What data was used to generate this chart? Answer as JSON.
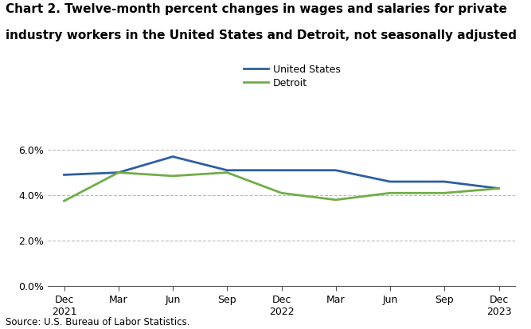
{
  "title_line1": "Chart 2. Twelve-month percent changes in wages and salaries for private",
  "title_line2": "industry workers in the United States and Detroit, not seasonally adjusted",
  "x_labels": [
    "Dec\n2021",
    "Mar",
    "Jun",
    "Sep",
    "Dec\n2022",
    "Mar",
    "Jun",
    "Sep",
    "Dec\n2023"
  ],
  "us_values": [
    4.9,
    5.0,
    5.7,
    5.1,
    5.1,
    5.1,
    4.6,
    4.6,
    4.3
  ],
  "detroit_values": [
    3.75,
    5.0,
    4.85,
    5.0,
    4.1,
    3.8,
    4.1,
    4.1,
    4.3
  ],
  "us_color": "#2e5fa3",
  "detroit_color": "#70ad47",
  "us_label": "United States",
  "detroit_label": "Detroit",
  "yticks": [
    0.0,
    2.0,
    4.0,
    6.0
  ],
  "ylim": [
    0.0,
    6.8
  ],
  "source_text": "Source: U.S. Bureau of Labor Statistics.",
  "background_color": "#ffffff",
  "grid_color": "#bbbbbb",
  "line_width": 2.0,
  "title_fontsize": 11,
  "tick_fontsize": 9,
  "legend_fontsize": 9,
  "source_fontsize": 8.5
}
